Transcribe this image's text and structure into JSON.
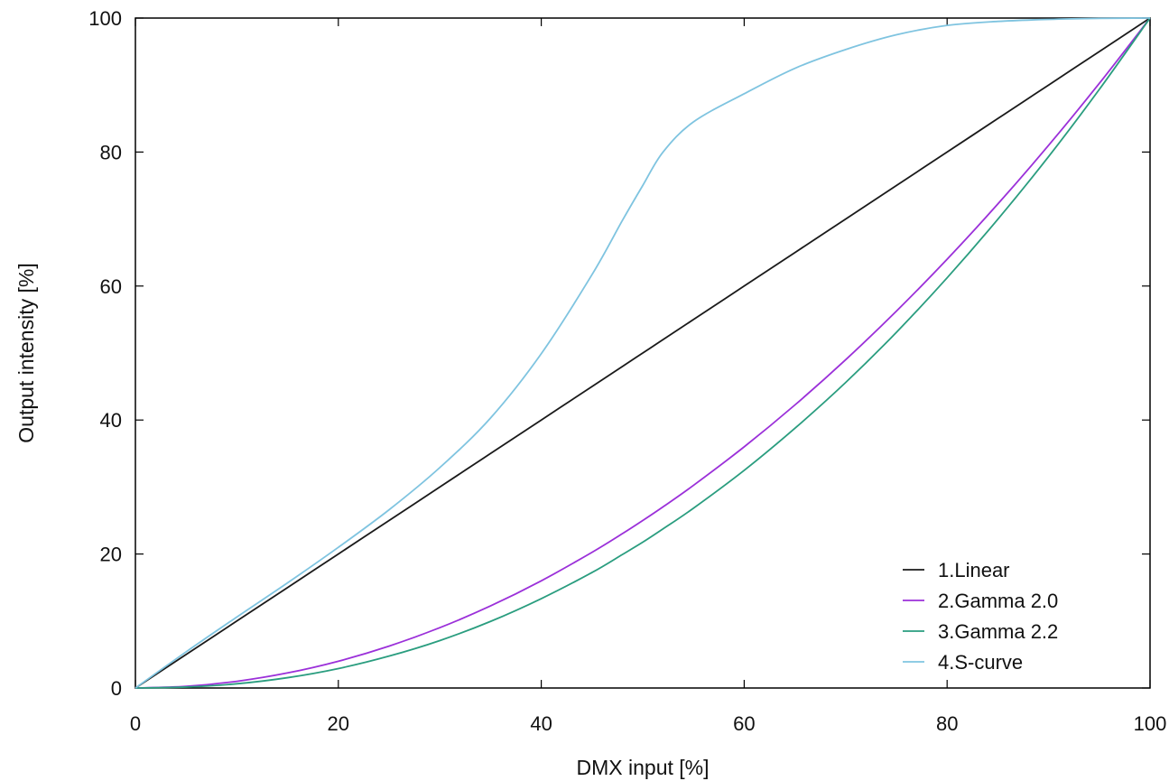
{
  "chart_data": {
    "type": "line",
    "title": "",
    "xlabel": "DMX input [%]",
    "ylabel": "Output intensity [%]",
    "xlim": [
      0,
      100
    ],
    "ylim": [
      0,
      100
    ],
    "xticks": [
      "0",
      "20",
      "40",
      "60",
      "80",
      "100"
    ],
    "yticks": [
      "0",
      "20",
      "40",
      "60",
      "80",
      "100"
    ],
    "grid": false,
    "legend_position": "bottom-right",
    "x": [
      0,
      5,
      10,
      15,
      20,
      25,
      30,
      35,
      40,
      45,
      48,
      50,
      52,
      55,
      60,
      65,
      70,
      75,
      80,
      85,
      90,
      95,
      100
    ],
    "series": [
      {
        "name": "1.Linear",
        "color": "#1a1a1a",
        "values": [
          0,
          5,
          10,
          15,
          20,
          25,
          30,
          35,
          40,
          45,
          48,
          50,
          52,
          55,
          60,
          65,
          70,
          75,
          80,
          85,
          90,
          95,
          100
        ]
      },
      {
        "name": "2.Gamma 2.0",
        "color": "#9b30d9",
        "values": [
          0,
          0.25,
          1,
          2.25,
          4,
          6.25,
          9,
          12.25,
          16,
          20.25,
          23.04,
          25,
          27.04,
          30.25,
          36,
          42.25,
          49,
          56.25,
          64,
          72.25,
          81,
          90.25,
          100
        ]
      },
      {
        "name": "3.Gamma 2.2",
        "color": "#2a9d7f",
        "values": [
          0,
          0.14,
          0.63,
          1.54,
          2.9,
          4.76,
          7.08,
          9.94,
          13.34,
          17.24,
          19.93,
          21.76,
          23.75,
          26.84,
          32.49,
          38.77,
          45.6,
          53.09,
          61.23,
          69.97,
          79.32,
          89.35,
          100
        ]
      },
      {
        "name": "4.S-curve",
        "color": "#7fc4e0",
        "values": [
          0,
          5.4,
          10.6,
          15.7,
          21.0,
          26.6,
          32.9,
          40.3,
          49.9,
          61.7,
          69.8,
          75.0,
          80.0,
          84.5,
          88.7,
          92.5,
          95.3,
          97.5,
          98.9,
          99.5,
          99.8,
          99.95,
          100
        ]
      }
    ]
  }
}
